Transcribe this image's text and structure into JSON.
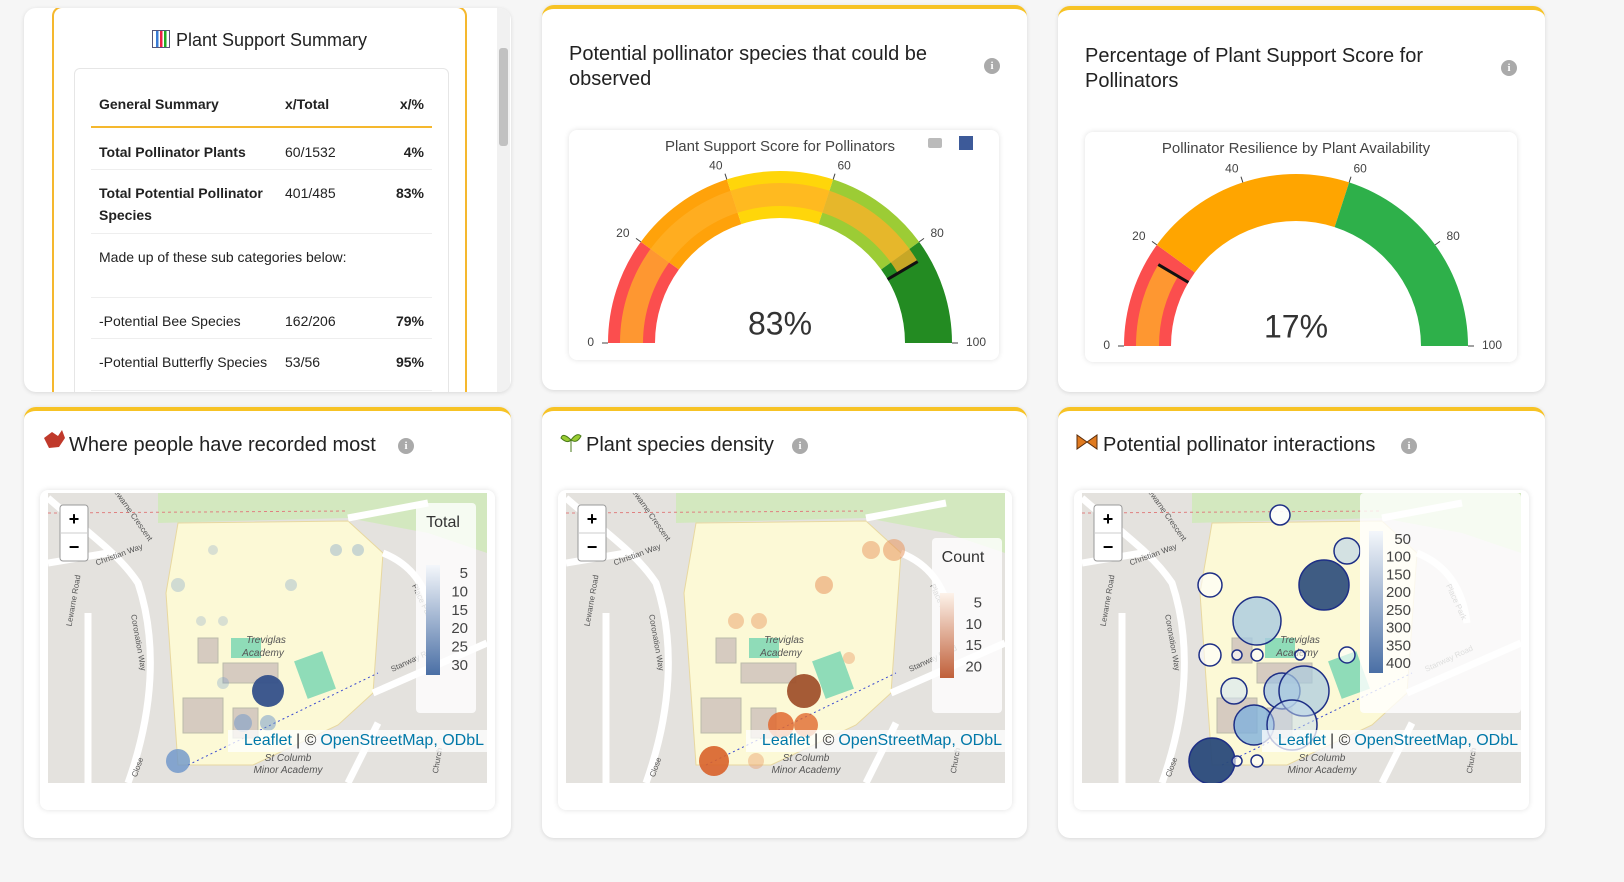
{
  "summary": {
    "title": "Plant Support Summary",
    "table": {
      "header": [
        "General Summary",
        "x/Total",
        "x/%"
      ],
      "rows": [
        [
          "Total Pollinator Plants",
          "60/1532",
          "4%"
        ],
        [
          "Total Potential Pollinator Species",
          "401/485",
          "83%"
        ],
        [
          "Made up of these sub categories below:"
        ],
        [
          "-Potential Bee Species",
          "162/206",
          "79%"
        ],
        [
          "-Potential Butterfly Species",
          "53/56",
          "95%"
        ]
      ]
    }
  },
  "chart_data": [
    {
      "type": "gauge",
      "card_title": "Potential pollinator species that could be observed",
      "title": "Plant Support Score for Pollinators",
      "value": 83,
      "value_label": "83%",
      "range": [
        0,
        100
      ],
      "ticks": [
        0,
        20,
        40,
        60,
        80,
        100
      ],
      "steps": [
        {
          "range": [
            0,
            20
          ],
          "color": "#fb4e4e"
        },
        {
          "range": [
            20,
            40
          ],
          "color": "#ffa20a"
        },
        {
          "range": [
            40,
            60
          ],
          "color": "#ffd60a"
        },
        {
          "range": [
            60,
            80
          ],
          "color": "#9ccc35"
        },
        {
          "range": [
            80,
            100
          ],
          "color": "#238b22"
        }
      ],
      "bar_color": "rgba(255,176,40,0.75)",
      "threshold": 83
    },
    {
      "type": "gauge",
      "card_title": "Percentage of Plant Support Score for Pollinators",
      "title": "Pollinator Resilience by Plant Availability",
      "value": 17,
      "value_label": "17%",
      "range": [
        0,
        100
      ],
      "ticks": [
        0,
        20,
        40,
        60,
        80,
        100
      ],
      "steps": [
        {
          "range": [
            0,
            20
          ],
          "color": "#fb4e4e"
        },
        {
          "range": [
            20,
            60
          ],
          "color": "#ffa500"
        },
        {
          "range": [
            60,
            100
          ],
          "color": "#2eb04a"
        }
      ],
      "bar_color": "rgba(255,176,40,0.75)",
      "threshold": 17
    }
  ],
  "maps": [
    {
      "title": "Where people have recorded most",
      "legend": {
        "title": "Total",
        "ticks": [
          5,
          10,
          15,
          20,
          25,
          30
        ]
      }
    },
    {
      "title": "Plant species density",
      "legend": {
        "title": "Count",
        "ticks": [
          5,
          10,
          15,
          20
        ]
      }
    },
    {
      "title": "Potential pollinator interactions",
      "legend": {
        "ticks": [
          50,
          100,
          150,
          200,
          250,
          300,
          350,
          400
        ]
      }
    }
  ],
  "map_common": {
    "zoom_in": "+",
    "zoom_out": "−",
    "attribution": {
      "leaflet": "Leaflet",
      "separator": "| ©",
      "osm": "OpenStreetMap, ODbL"
    },
    "labels": [
      "Lewarne Crescent",
      "Christian Way",
      "Lewarne Road",
      "Coronation Way",
      "Treviglas",
      "Academy",
      "St Columb",
      "Minor Academy",
      "Stanway Road",
      "Place Park",
      "Close",
      "Church"
    ]
  }
}
